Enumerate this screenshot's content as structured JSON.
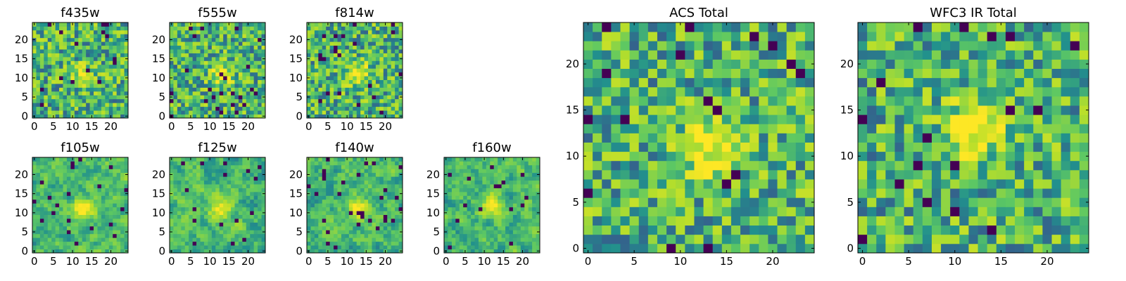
{
  "chart_data": [
    {
      "type": "heatmap",
      "title": "f435w",
      "xlim": [
        0,
        25
      ],
      "ylim": [
        0,
        25
      ],
      "xticks": [
        "0",
        "5",
        "10",
        "15",
        "20"
      ],
      "yticks": [
        "0",
        "5",
        "10",
        "15",
        "20"
      ],
      "seed": 11,
      "peak": [
        13,
        11
      ],
      "peak_strength": 0.35,
      "noise": "fine"
    },
    {
      "type": "heatmap",
      "title": "f555w",
      "xlim": [
        0,
        25
      ],
      "ylim": [
        0,
        25
      ],
      "xticks": [
        "0",
        "5",
        "10",
        "15",
        "20"
      ],
      "yticks": [
        "0",
        "5",
        "10",
        "15",
        "20"
      ],
      "seed": 23,
      "peak": [
        13,
        11
      ],
      "peak_strength": 0.45,
      "noise": "fine"
    },
    {
      "type": "heatmap",
      "title": "f814w",
      "xlim": [
        0,
        25
      ],
      "ylim": [
        0,
        25
      ],
      "xticks": [
        "0",
        "5",
        "10",
        "15",
        "20"
      ],
      "yticks": [
        "0",
        "5",
        "10",
        "15",
        "20"
      ],
      "seed": 37,
      "peak": [
        13,
        11
      ],
      "peak_strength": 0.45,
      "noise": "fine"
    },
    {
      "type": "heatmap",
      "title": "f105w",
      "xlim": [
        0,
        25
      ],
      "ylim": [
        0,
        25
      ],
      "xticks": [
        "0",
        "5",
        "10",
        "15",
        "20"
      ],
      "yticks": [
        "0",
        "5",
        "10",
        "15",
        "20"
      ],
      "seed": 41,
      "peak": [
        13,
        11
      ],
      "peak_strength": 0.5,
      "noise": "smooth"
    },
    {
      "type": "heatmap",
      "title": "f125w",
      "xlim": [
        0,
        25
      ],
      "ylim": [
        0,
        25
      ],
      "xticks": [
        "0",
        "5",
        "10",
        "15",
        "20"
      ],
      "yticks": [
        "0",
        "5",
        "10",
        "15",
        "20"
      ],
      "seed": 53,
      "peak": [
        13,
        11
      ],
      "peak_strength": 0.4,
      "noise": "smooth"
    },
    {
      "type": "heatmap",
      "title": "f140w",
      "xlim": [
        0,
        25
      ],
      "ylim": [
        0,
        25
      ],
      "xticks": [
        "0",
        "5",
        "10",
        "15",
        "20"
      ],
      "yticks": [
        "0",
        "5",
        "10",
        "15",
        "20"
      ],
      "seed": 67,
      "peak": [
        13,
        11
      ],
      "peak_strength": 0.4,
      "noise": "smooth"
    },
    {
      "type": "heatmap",
      "title": "f160w",
      "xlim": [
        0,
        25
      ],
      "ylim": [
        0,
        25
      ],
      "xticks": [
        "0",
        "5",
        "10",
        "15",
        "20"
      ],
      "yticks": [
        "0",
        "5",
        "10",
        "15",
        "20"
      ],
      "seed": 79,
      "peak": [
        12,
        12
      ],
      "peak_strength": 0.45,
      "noise": "smooth"
    },
    {
      "type": "heatmap",
      "title": "ACS Total",
      "xlim": [
        0,
        25
      ],
      "ylim": [
        0,
        25
      ],
      "xticks": [
        "0",
        "5",
        "10",
        "15",
        "20"
      ],
      "yticks": [
        "0",
        "5",
        "10",
        "15",
        "20"
      ],
      "seed": 97,
      "peak": [
        13,
        11
      ],
      "peak_strength": 0.5,
      "noise": "fine"
    },
    {
      "type": "heatmap",
      "title": "WFC3 IR Total",
      "xlim": [
        0,
        25
      ],
      "ylim": [
        0,
        25
      ],
      "xticks": [
        "0",
        "5",
        "10",
        "15",
        "20"
      ],
      "yticks": [
        "0",
        "5",
        "10",
        "15",
        "20"
      ],
      "seed": 113,
      "peak": [
        12,
        13
      ],
      "peak_strength": 0.55,
      "noise": "fine"
    }
  ],
  "colors": {
    "colormap": "viridis",
    "colormap_stops": [
      "#440154",
      "#3b528b",
      "#21908d",
      "#5dc863",
      "#b5de2b",
      "#fde725"
    ]
  }
}
